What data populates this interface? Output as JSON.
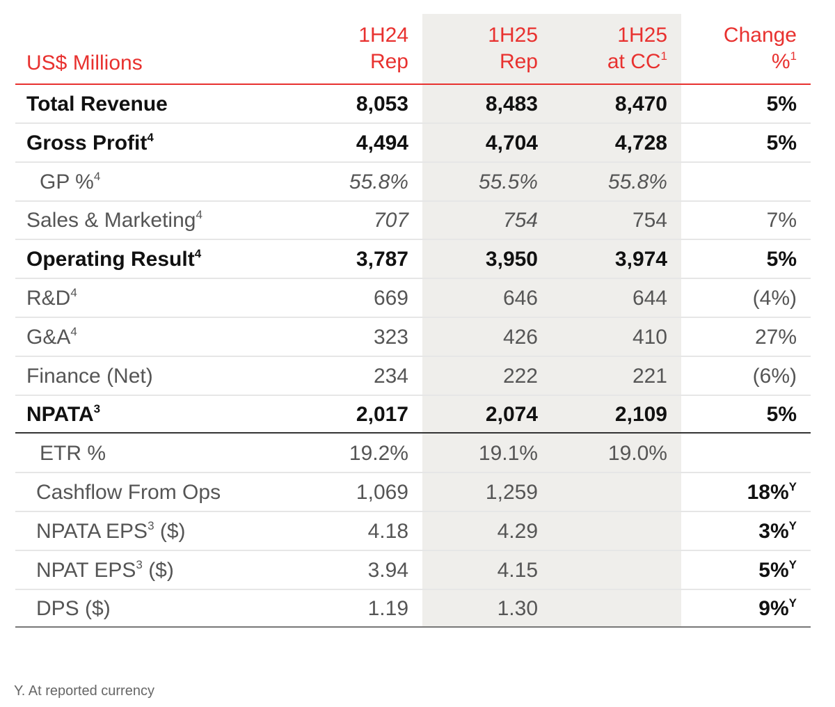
{
  "table": {
    "header": [
      {
        "lines": [
          "US$ Millions"
        ]
      },
      {
        "lines": [
          "1H24",
          "Rep"
        ]
      },
      {
        "lines": [
          "1H25",
          "Rep"
        ]
      },
      {
        "lines": [
          "1H25",
          "at CC"
        ],
        "sup": "1"
      },
      {
        "lines": [
          "Change",
          "%"
        ],
        "sup": "1"
      }
    ],
    "rows": [
      {
        "label": "Total Revenue",
        "values": [
          "8,053",
          "8,483",
          "8,470"
        ],
        "change": "5%"
      },
      {
        "label": "Gross Profit",
        "label_sup": "4",
        "values": [
          "4,494",
          "4,704",
          "4,728"
        ],
        "change": "5%"
      },
      {
        "label": "GP %",
        "label_sup": "4",
        "values": [
          "55.8%",
          "55.5%",
          "55.8%"
        ],
        "change": null
      },
      {
        "label": "Sales & Marketing",
        "label_sup": "4",
        "values": [
          "707",
          "754",
          "754"
        ],
        "change": "7%"
      },
      {
        "label": "Operating Result",
        "label_sup": "4",
        "values": [
          "3,787",
          "3,950",
          "3,974"
        ],
        "change": "5%"
      },
      {
        "label": "R&D",
        "label_sup": "4",
        "values": [
          "669",
          "646",
          "644"
        ],
        "change": "(4%)"
      },
      {
        "label": "G&A",
        "label_sup": "4",
        "values": [
          "323",
          "426",
          "410"
        ],
        "change": "27%"
      },
      {
        "label": "Finance (Net)",
        "values": [
          "234",
          "222",
          "221"
        ],
        "change": "(6%)"
      },
      {
        "label": "NPATA",
        "label_sup": "3",
        "values": [
          "2,017",
          "2,074",
          "2,109"
        ],
        "change": "5%"
      },
      {
        "label": "ETR %",
        "values": [
          "19.2%",
          "19.1%",
          "19.0%"
        ],
        "change": null
      },
      {
        "label": "Cashflow From Ops",
        "values": [
          "1,069",
          "1,259",
          null
        ],
        "change": "18%",
        "change_sup": "Y"
      },
      {
        "label": "NPATA EPS",
        "label_sup": "3",
        "label_suffix": " ($)",
        "values": [
          "4.18",
          "4.29",
          null
        ],
        "change": "3%",
        "change_sup": "Y"
      },
      {
        "label": "NPAT EPS",
        "label_sup": "3",
        "label_suffix": " ($)",
        "values": [
          "3.94",
          "4.15",
          null
        ],
        "change": "5%",
        "change_sup": "Y"
      },
      {
        "label": "DPS ($)",
        "values": [
          "1.19",
          "1.30",
          null
        ],
        "change": "9%",
        "change_sup": "Y"
      }
    ]
  },
  "footnote": "Y. At reported currency"
}
